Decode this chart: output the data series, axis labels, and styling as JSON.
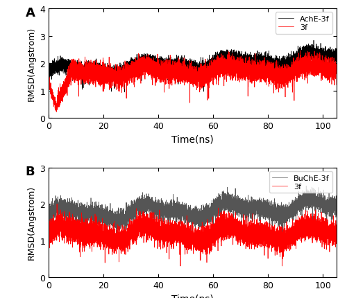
{
  "panel_A": {
    "label": "A",
    "protein_label": "AchE-3f",
    "ligand_label": "3f",
    "protein_color": "#000000",
    "ligand_color": "#ff0000",
    "ylim": [
      0,
      4
    ],
    "yticks": [
      0,
      1,
      2,
      3,
      4
    ],
    "xlim": [
      0,
      105
    ],
    "xticks": [
      0,
      20,
      40,
      60,
      80,
      100
    ],
    "xlabel": "Time(ns)",
    "ylabel": "RMSD(Angstrom)",
    "protein_mean": 2.05,
    "protein_std": 0.15,
    "ligand_mean": 1.75,
    "ligand_std": 0.22,
    "protein_trend_start": 1.7,
    "protein_trend_end": 2.25,
    "ligand_trend_start": 1.65,
    "ligand_trend_end": 1.75
  },
  "panel_B": {
    "label": "B",
    "protein_label": "BuChE-3f",
    "ligand_label": "3f",
    "protein_color": "#555555",
    "ligand_color": "#ff0000",
    "ylim": [
      0,
      3
    ],
    "yticks": [
      0,
      1,
      2,
      3
    ],
    "xlim": [
      0,
      105
    ],
    "xticks": [
      0,
      20,
      40,
      60,
      80,
      100
    ],
    "xlabel": "Time(ns)",
    "ylabel": "RMSD(Angstrom)",
    "protein_mean": 1.82,
    "protein_std": 0.13,
    "ligand_mean": 1.15,
    "ligand_std": 0.18,
    "protein_trend_start": 1.7,
    "protein_trend_end": 1.95,
    "ligand_trend_start": 1.2,
    "ligand_trend_end": 1.2
  },
  "n_points": 10500,
  "seed": 42,
  "figsize": [
    5.0,
    4.31
  ],
  "dpi": 100
}
